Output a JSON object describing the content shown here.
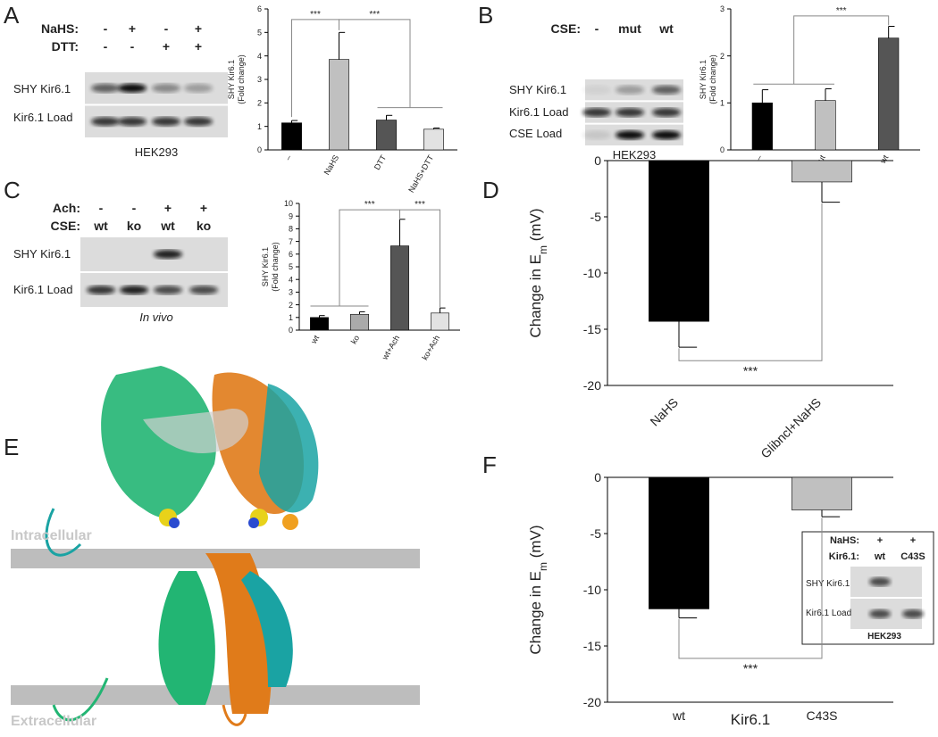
{
  "panel_letters": [
    "A",
    "B",
    "C",
    "D",
    "E",
    "F"
  ],
  "blots": {
    "A": {
      "conditions": [
        {
          "label": "NaHS:",
          "signs": [
            "-",
            "+",
            "-",
            "+"
          ]
        },
        {
          "label": "DTT:",
          "signs": [
            "-",
            "-",
            "+",
            "+"
          ]
        }
      ],
      "rows": [
        "SHY Kir6.1",
        "Kir6.1 Load"
      ],
      "cell": "HEK293"
    },
    "B": {
      "conditions": [
        {
          "label": "CSE:",
          "signs": [
            "-",
            "mut",
            "wt"
          ]
        }
      ],
      "rows": [
        "SHY Kir6.1",
        "Kir6.1 Load",
        "CSE Load"
      ],
      "cell": "HEK293"
    },
    "C": {
      "conditions": [
        {
          "label": "Ach:",
          "signs": [
            "-",
            "-",
            "+",
            "+"
          ]
        },
        {
          "label": "CSE:",
          "signs": [
            "wt",
            "ko",
            "wt",
            "ko"
          ]
        }
      ],
      "rows": [
        "SHY Kir6.1",
        "Kir6.1 Load"
      ],
      "cell": "In vivo"
    },
    "F": {
      "conditions": [
        {
          "label": "NaHS:",
          "signs": [
            "+",
            "+"
          ]
        },
        {
          "label": "Kir6.1:",
          "signs": [
            "wt",
            "C43S"
          ]
        }
      ],
      "rows": [
        "SHY Kir6.1",
        "Kir6.1 Load"
      ],
      "cell": "HEK293"
    }
  },
  "structure": {
    "labels": [
      "Intracellular",
      "Extracellular"
    ]
  },
  "chart_data": [
    {
      "type": "bar",
      "categories": [
        "–",
        "NaHS",
        "DTT",
        "NaHS+DTT"
      ],
      "values": [
        1.15,
        3.85,
        1.27,
        0.88
      ],
      "errors": [
        0.1,
        1.15,
        0.2,
        0.05
      ],
      "colors": [
        "#000000",
        "#c0c0c0",
        "#555555",
        "#e2e2e2"
      ],
      "ylim": [
        0,
        6
      ],
      "yticks": [
        0,
        1,
        2,
        3,
        4,
        5,
        6
      ],
      "ylabel": [
        "SHY Kir6.1",
        "(Fold change)"
      ],
      "annotations": [
        "***",
        "***"
      ]
    },
    {
      "type": "bar",
      "categories": [
        "–",
        "mut",
        "wt"
      ],
      "values": [
        1.0,
        1.05,
        2.38
      ],
      "errors": [
        0.28,
        0.25,
        0.25
      ],
      "colors": [
        "#000000",
        "#c0c0c0",
        "#555555"
      ],
      "ylim": [
        0,
        3
      ],
      "yticks": [
        0,
        1,
        2,
        3
      ],
      "ylabel": [
        "SHY Kir6.1",
        "(Fold change)"
      ],
      "annotations": [
        "***"
      ]
    },
    {
      "type": "bar",
      "categories": [
        "wt",
        "ko",
        "wt+Ach",
        "ko+Ach"
      ],
      "values": [
        1.0,
        1.25,
        6.65,
        1.35
      ],
      "errors": [
        0.15,
        0.2,
        2.1,
        0.4
      ],
      "colors": [
        "#000000",
        "#aaaaaa",
        "#555555",
        "#e2e2e2"
      ],
      "ylim": [
        0,
        10
      ],
      "yticks": [
        0,
        1,
        2,
        3,
        4,
        5,
        6,
        7,
        8,
        9,
        10
      ],
      "ylabel": [
        "SHY Kir6.1",
        "(Fold change)"
      ],
      "annotations": [
        "***",
        "***"
      ]
    },
    {
      "type": "bar",
      "categories": [
        "NaHS",
        "Glibncl+NaHS"
      ],
      "values": [
        -14.3,
        -1.9
      ],
      "errors": [
        2.3,
        1.8
      ],
      "colors": [
        "#000000",
        "#c0c0c0"
      ],
      "ylim": [
        -20,
        0
      ],
      "yticks": [
        -20,
        -15,
        -10,
        -5,
        0
      ],
      "ylabel": [
        "Change in E",
        "m",
        " (mV)"
      ],
      "annotations": [
        "***"
      ]
    },
    {
      "type": "bar",
      "categories": [
        "wt",
        "C43S"
      ],
      "values": [
        -11.7,
        -2.9
      ],
      "errors": [
        0.8,
        0.6
      ],
      "colors": [
        "#000000",
        "#c0c0c0"
      ],
      "ylim": [
        -20,
        0
      ],
      "yticks": [
        -20,
        -15,
        -10,
        -5,
        0
      ],
      "ylabel": [
        "Change in E",
        "m",
        " (mV)"
      ],
      "xlabel": "Kir6.1",
      "annotations": [
        "***"
      ]
    }
  ]
}
